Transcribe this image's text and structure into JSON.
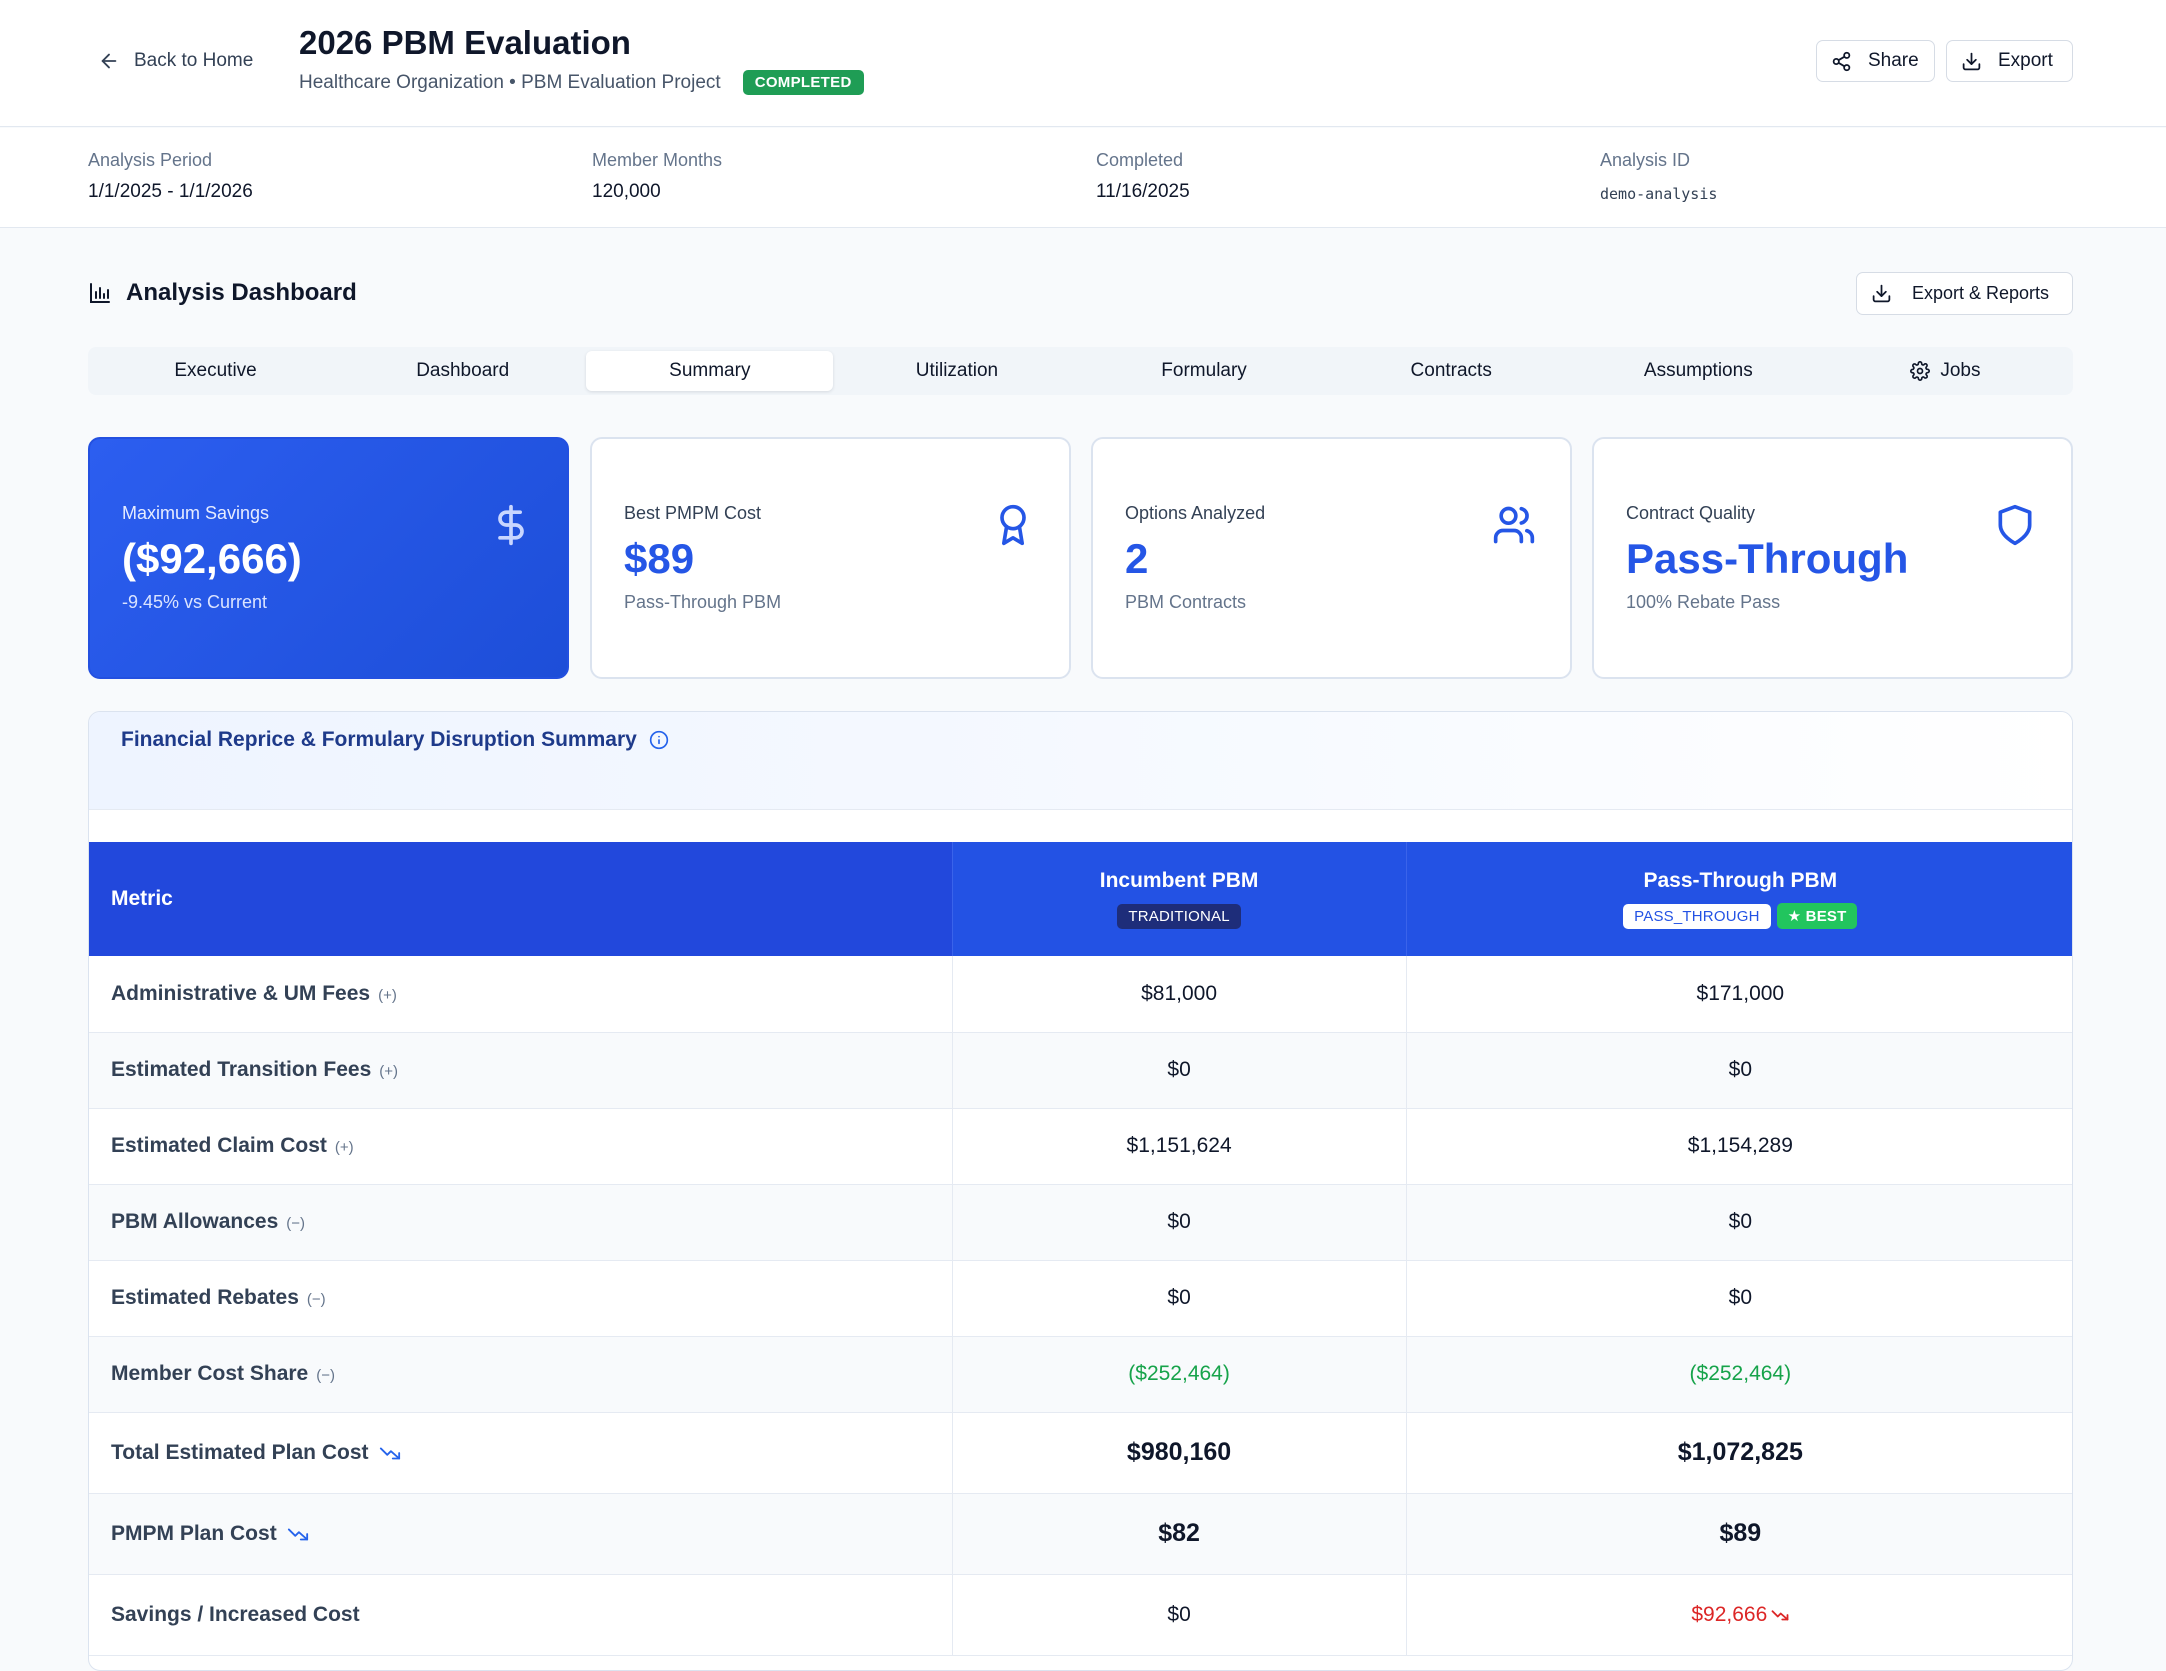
{
  "header": {
    "back_label": "Back to Home",
    "title": "2026 PBM Evaluation",
    "subtitle": "Healthcare Organization • PBM Evaluation Project",
    "status": "COMPLETED",
    "share_label": "Share",
    "export_label": "Export"
  },
  "meta": [
    {
      "label": "Analysis Period",
      "value": "1/1/2025 - 1/1/2026"
    },
    {
      "label": "Member Months",
      "value": "120,000"
    },
    {
      "label": "Completed",
      "value": "11/16/2025"
    },
    {
      "label": "Analysis ID",
      "value": "demo-analysis"
    }
  ],
  "dashboard": {
    "title": "Analysis Dashboard",
    "reports_label": "Export & Reports"
  },
  "tabs": [
    "Executive",
    "Dashboard",
    "Summary",
    "Utilization",
    "Formulary",
    "Contracts",
    "Assumptions",
    "Jobs"
  ],
  "active_tab": "Summary",
  "cards": [
    {
      "label": "Maximum Savings",
      "value": "($92,666)",
      "sub": "-9.45% vs Current",
      "icon": "dollar-icon"
    },
    {
      "label": "Best PMPM Cost",
      "value": "$89",
      "sub": "Pass-Through PBM",
      "icon": "award-icon"
    },
    {
      "label": "Options Analyzed",
      "value": "2",
      "sub": "PBM Contracts",
      "icon": "users-icon"
    },
    {
      "label": "Contract Quality",
      "value": "Pass-Through",
      "sub": "100% Rebate Pass",
      "icon": "shield-icon"
    }
  ],
  "summary": {
    "title": "Financial Reprice & Formulary Disruption Summary",
    "metric_header": "Metric",
    "columns": [
      {
        "name": "Incumbent PBM",
        "tag": "TRADITIONAL"
      },
      {
        "name": "Pass-Through PBM",
        "tag": "PASS_THROUGH",
        "best": "★ BEST"
      }
    ],
    "rows": [
      {
        "metric": "Administrative & UM Fees",
        "sign": "(+)",
        "values": [
          "$81,000",
          "$171,000"
        ]
      },
      {
        "metric": "Estimated Transition Fees",
        "sign": "(+)",
        "values": [
          "$0",
          "$0"
        ]
      },
      {
        "metric": "Estimated Claim Cost",
        "sign": "(+)",
        "values": [
          "$1,151,624",
          "$1,154,289"
        ]
      },
      {
        "metric": "PBM Allowances",
        "sign": "(−)",
        "values": [
          "$0",
          "$0"
        ]
      },
      {
        "metric": "Estimated Rebates",
        "sign": "(−)",
        "values": [
          "$0",
          "$0"
        ]
      },
      {
        "metric": "Member Cost Share",
        "sign": "(−)",
        "values": [
          "($252,464)",
          "($252,464)"
        ]
      },
      {
        "metric": "Total Estimated Plan Cost",
        "sign": "",
        "values": [
          "$980,160",
          "$1,072,825"
        ]
      },
      {
        "metric": "PMPM Plan Cost",
        "sign": "",
        "values": [
          "$82",
          "$89"
        ]
      },
      {
        "metric": "Savings / Increased Cost",
        "sign": "",
        "values": [
          "$0",
          "$92,666"
        ]
      }
    ]
  },
  "colors": {
    "accent": "#2556e6",
    "header_blue": "#2352e4",
    "success": "#1f9d55",
    "negative": "#dc2626",
    "green_value": "#16a34a"
  }
}
